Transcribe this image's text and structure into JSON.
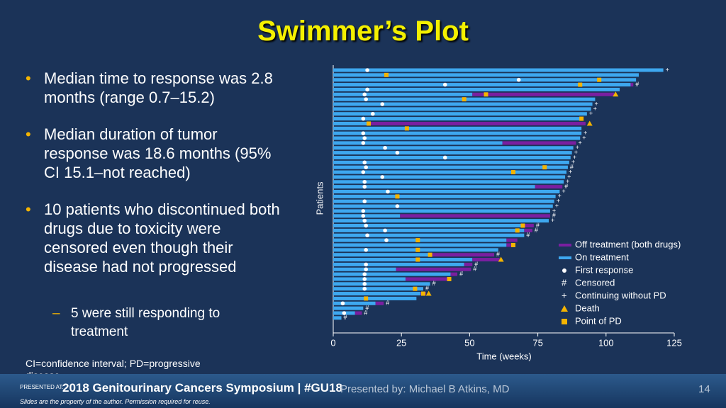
{
  "chart_data": {
    "type": "swimmer",
    "title": "Swimmer’s Plot",
    "x_label": "Time (weeks)",
    "y_label": "Patients",
    "xlim": [
      0,
      125
    ],
    "xticks": [
      0,
      25,
      50,
      75,
      100,
      125
    ],
    "series": [
      {
        "name": "Off treatment (both drugs)",
        "color": "#7a1fa0",
        "values": [
          null,
          null,
          null,
          1,
          null,
          52,
          null,
          null,
          null,
          null,
          null,
          79.5,
          null,
          null,
          null,
          27,
          null,
          null,
          null,
          null,
          null,
          null,
          null,
          null,
          10,
          null,
          null,
          null,
          null,
          null,
          55,
          null,
          3.5,
          3,
          null,
          4,
          2.5,
          null,
          24,
          10,
          3,
          27.5,
          2.5,
          15.5,
          null,
          null,
          2,
          null,
          3,
          null,
          2.5,
          null
        ]
      },
      {
        "name": "On treatment",
        "color": "#3ea8f0",
        "values": [
          121,
          112,
          111,
          109,
          105,
          51,
          96,
          95,
          94.5,
          93,
          91.5,
          13,
          91,
          91,
          90.5,
          62,
          88,
          87.5,
          87,
          86.5,
          86,
          85.5,
          85,
          84.5,
          74,
          83,
          81.5,
          81,
          80.5,
          79.5,
          24.5,
          79,
          70,
          70,
          70,
          63.5,
          63.5,
          60.5,
          35,
          51,
          48,
          23,
          43,
          26.5,
          35.5,
          33,
          32,
          30.5,
          15.5,
          11,
          8,
          3
        ]
      },
      {
        "name": "First response",
        "color": "#ffffff",
        "values": [
          12.5,
          null,
          68,
          41,
          12.5,
          11.5,
          12,
          18,
          null,
          14.5,
          11,
          null,
          null,
          11,
          11.5,
          11,
          19,
          23.5,
          41,
          11.5,
          12,
          11,
          18,
          11.5,
          11.5,
          20,
          null,
          11.5,
          23.5,
          11,
          11,
          11.5,
          12,
          19,
          12.5,
          19.5,
          null,
          12,
          null,
          null,
          12,
          12,
          11.5,
          11.5,
          11.5,
          11.5,
          null,
          null,
          3.5,
          null,
          4,
          null
        ]
      },
      {
        "name": "Censored",
        "symbol": "#",
        "color": "#ffffff",
        "values": [
          null,
          null,
          null,
          110,
          null,
          null,
          null,
          null,
          null,
          null,
          null,
          null,
          null,
          null,
          null,
          null,
          null,
          null,
          null,
          null,
          86,
          null,
          null,
          null,
          84,
          null,
          null,
          null,
          null,
          null,
          79.5,
          null,
          73.5,
          73,
          70,
          null,
          null,
          null,
          59,
          null,
          51,
          50.5,
          45.5,
          null,
          35.5,
          33,
          null,
          null,
          18.5,
          11,
          10.5,
          3
        ]
      },
      {
        "name": "Continuing without PD",
        "symbol": "+",
        "color": "#ffffff",
        "values": [
          121,
          null,
          null,
          null,
          null,
          null,
          null,
          95,
          94.5,
          93,
          null,
          null,
          null,
          91,
          90.5,
          89,
          88,
          87.5,
          87,
          86.5,
          null,
          85.5,
          85,
          84.5,
          null,
          83,
          81.5,
          81,
          80.5,
          79.5,
          null,
          79,
          null,
          null,
          null,
          null,
          null,
          null,
          null,
          null,
          null,
          null,
          null,
          null,
          null,
          null,
          null,
          null,
          null,
          null,
          null,
          null
        ]
      },
      {
        "name": "Death",
        "color": "#f5b400",
        "values": [
          null,
          null,
          null,
          null,
          null,
          103.5,
          null,
          null,
          null,
          null,
          null,
          94,
          null,
          null,
          null,
          null,
          null,
          null,
          null,
          null,
          null,
          null,
          null,
          null,
          null,
          null,
          null,
          null,
          null,
          null,
          null,
          null,
          null,
          null,
          null,
          null,
          null,
          null,
          null,
          61.5,
          null,
          null,
          null,
          null,
          null,
          null,
          35,
          null,
          null,
          null,
          null,
          null
        ]
      },
      {
        "name": "Point of PD",
        "color": "#f5b400",
        "values": [
          null,
          19.5,
          97.5,
          90.5,
          null,
          56,
          48,
          null,
          null,
          null,
          91,
          13,
          27,
          null,
          null,
          null,
          null,
          null,
          null,
          null,
          77.5,
          66,
          null,
          null,
          null,
          null,
          23.5,
          null,
          null,
          null,
          null,
          null,
          69.5,
          67.5,
          null,
          31,
          66,
          31,
          35.5,
          31,
          null,
          null,
          null,
          42.5,
          null,
          30,
          33,
          12,
          null,
          null,
          null,
          null
        ]
      }
    ]
  },
  "slide": {
    "bullets": [
      "Median time to response was 2.8 months (range 0.7–15.2)",
      "Median duration of tumor response was 18.6 months (95% CI 15.1–not reached)",
      "10 patients who discontinued both drugs due to toxicity were censored even though their disease had not progressed"
    ],
    "sub_bullet": "5 were still responding to treatment",
    "bullet_marker": "•",
    "sub_marker": "–",
    "footnote": "CI=confidence interval; PD=progressive disease",
    "presented_at": "PRESENTED AT:",
    "meeting": "2018 Genitourinary Cancers Symposium | #GU18",
    "presenter": "Presented by: Michael B Atkins, MD",
    "page": "14",
    "disclaimer": "Slides are the property of the author. Permission required for reuse."
  }
}
